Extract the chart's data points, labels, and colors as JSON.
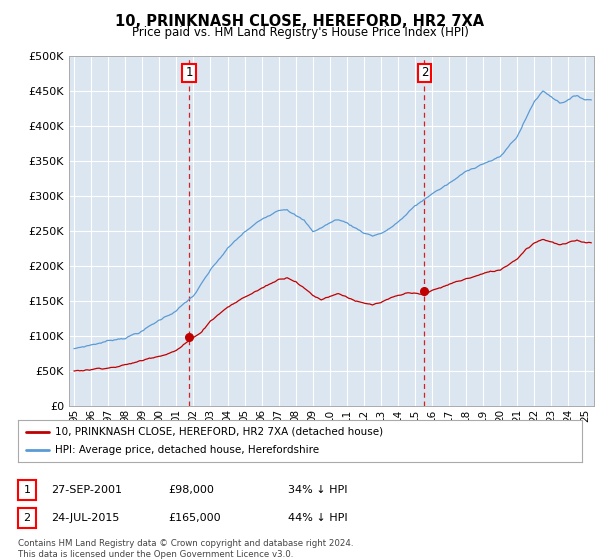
{
  "title": "10, PRINKNASH CLOSE, HEREFORD, HR2 7XA",
  "subtitle": "Price paid vs. HM Land Registry's House Price Index (HPI)",
  "legend_entry1": "10, PRINKNASH CLOSE, HEREFORD, HR2 7XA (detached house)",
  "legend_entry2": "HPI: Average price, detached house, Herefordshire",
  "ann1_label": "1",
  "ann1_date": "27-SEP-2001",
  "ann1_price": "£98,000",
  "ann1_pct": "34% ↓ HPI",
  "ann1_x": 2001.74,
  "ann1_y": 98000,
  "ann2_label": "2",
  "ann2_date": "24-JUL-2015",
  "ann2_price": "£165,000",
  "ann2_pct": "44% ↓ HPI",
  "ann2_x": 2015.55,
  "ann2_y": 165000,
  "footer": "Contains HM Land Registry data © Crown copyright and database right 2024.\nThis data is licensed under the Open Government Licence v3.0.",
  "hpi_color": "#5b9bd5",
  "price_color": "#c00000",
  "plot_bg": "#dce6f1",
  "ylim": [
    0,
    500000
  ],
  "ytick_vals": [
    0,
    50000,
    100000,
    150000,
    200000,
    250000,
    300000,
    350000,
    400000,
    450000,
    500000
  ],
  "ytick_labels": [
    "£0",
    "£50K",
    "£100K",
    "£150K",
    "£200K",
    "£250K",
    "£300K",
    "£350K",
    "£400K",
    "£450K",
    "£500K"
  ],
  "xstart": 1994.7,
  "xend": 2025.5,
  "xtick_years": [
    1995,
    1996,
    1997,
    1998,
    1999,
    2000,
    2001,
    2002,
    2003,
    2004,
    2005,
    2006,
    2007,
    2008,
    2009,
    2010,
    2011,
    2012,
    2013,
    2014,
    2015,
    2016,
    2017,
    2018,
    2019,
    2020,
    2021,
    2022,
    2023,
    2024,
    2025
  ]
}
